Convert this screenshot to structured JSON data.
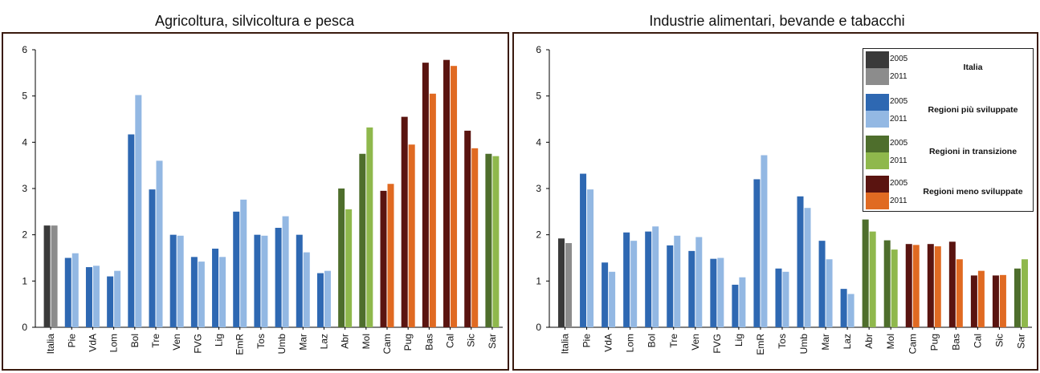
{
  "chart_data": [
    {
      "type": "bar",
      "title": "Agricoltura, silvicoltura e pesca",
      "categories": [
        "Italia",
        "Pie",
        "VdA",
        "Lom",
        "Bol",
        "Tre",
        "Ven",
        "FVG",
        "Lig",
        "EmR",
        "Tos",
        "Umb",
        "Mar",
        "Laz",
        "Abr",
        "Mol",
        "Cam",
        "Pug",
        "Bas",
        "Cal",
        "Sic",
        "Sar"
      ],
      "groups": [
        "Italia",
        "piu",
        "piu",
        "piu",
        "piu",
        "piu",
        "piu",
        "piu",
        "piu",
        "piu",
        "piu",
        "piu",
        "piu",
        "piu",
        "trans",
        "trans",
        "meno",
        "meno",
        "meno",
        "meno",
        "meno",
        "trans"
      ],
      "series": [
        {
          "name": "2005",
          "values": [
            2.2,
            1.5,
            1.3,
            1.1,
            4.17,
            2.98,
            2.0,
            1.52,
            1.7,
            2.5,
            2.0,
            2.15,
            2.0,
            1.17,
            3.0,
            3.75,
            2.95,
            4.55,
            5.72,
            5.78,
            4.25,
            3.75
          ]
        },
        {
          "name": "2011",
          "values": [
            2.2,
            1.6,
            1.33,
            1.22,
            5.02,
            3.6,
            1.98,
            1.42,
            1.52,
            2.76,
            1.98,
            2.4,
            1.62,
            1.22,
            2.55,
            4.32,
            3.1,
            3.95,
            5.05,
            5.65,
            3.87,
            3.7
          ]
        }
      ],
      "ylim": [
        0,
        6
      ],
      "yticks": [
        "0",
        "1",
        "2",
        "3",
        "4",
        "5",
        "6"
      ],
      "xlabel": "",
      "ylabel": ""
    },
    {
      "type": "bar",
      "title": "Industrie alimentari, bevande e tabacchi",
      "categories": [
        "Italia",
        "Pie",
        "VdA",
        "Lom",
        "Bol",
        "Tre",
        "Ven",
        "FVG",
        "Lig",
        "EmR",
        "Tos",
        "Umb",
        "Mar",
        "Laz",
        "Abr",
        "Mol",
        "Cam",
        "Pug",
        "Bas",
        "Cal",
        "Sic",
        "Sar"
      ],
      "groups": [
        "Italia",
        "piu",
        "piu",
        "piu",
        "piu",
        "piu",
        "piu",
        "piu",
        "piu",
        "piu",
        "piu",
        "piu",
        "piu",
        "piu",
        "trans",
        "trans",
        "meno",
        "meno",
        "meno",
        "meno",
        "meno",
        "trans"
      ],
      "series": [
        {
          "name": "2005",
          "values": [
            1.92,
            3.32,
            1.4,
            2.05,
            2.07,
            1.77,
            1.65,
            1.48,
            0.92,
            3.2,
            1.27,
            2.83,
            1.87,
            0.83,
            2.33,
            1.88,
            1.8,
            1.8,
            1.85,
            1.12,
            1.12,
            1.27
          ]
        },
        {
          "name": "2011",
          "values": [
            1.82,
            2.98,
            1.2,
            1.87,
            2.18,
            1.98,
            1.95,
            1.5,
            1.08,
            3.72,
            1.2,
            2.58,
            1.47,
            0.72,
            2.07,
            1.68,
            1.78,
            1.75,
            1.47,
            1.22,
            1.13,
            1.47
          ]
        }
      ],
      "ylim": [
        0,
        6
      ],
      "yticks": [
        "0",
        "1",
        "2",
        "3",
        "4",
        "5",
        "6"
      ],
      "xlabel": "",
      "ylabel": ""
    }
  ],
  "colors": {
    "Italia": [
      "#3a3a3a",
      "#8c8c8c"
    ],
    "piu": [
      "#2e68b2",
      "#93b8e3"
    ],
    "trans": [
      "#4e6e2c",
      "#8fb84c"
    ],
    "meno": [
      "#5a1410",
      "#e06a22"
    ]
  },
  "legend": {
    "rows": [
      {
        "y1": "2005",
        "y2": "2011",
        "label": "Italia",
        "key": "Italia"
      },
      {
        "y1": "2005",
        "y2": "2011",
        "label": "Regioni più sviluppate",
        "key": "piu"
      },
      {
        "y1": "2005",
        "y2": "2011",
        "label": "Regioni in transizione",
        "key": "trans"
      },
      {
        "y1": "2005",
        "y2": "2011",
        "label": "Regioni meno sviluppate",
        "key": "meno"
      }
    ]
  }
}
